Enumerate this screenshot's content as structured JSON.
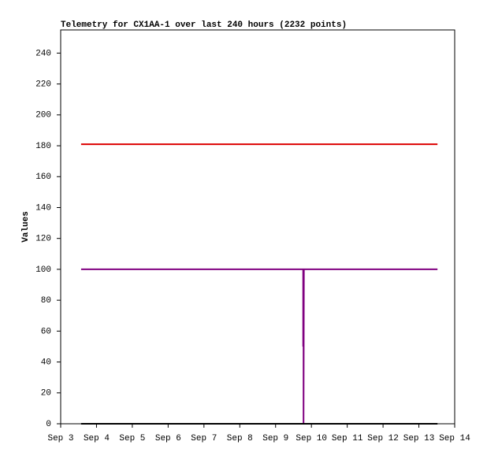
{
  "chart_data": {
    "type": "line",
    "title": "Telemetry for CX1AA-1 over last 240 hours (2232 points)",
    "y_label": "Values",
    "xlim": [
      3,
      14
    ],
    "xticks": [
      {
        "value": 3,
        "label": "Sep 3"
      },
      {
        "value": 4,
        "label": "Sep 4"
      },
      {
        "value": 5,
        "label": "Sep 5"
      },
      {
        "value": 6,
        "label": "Sep 6"
      },
      {
        "value": 7,
        "label": "Sep 7"
      },
      {
        "value": 8,
        "label": "Sep 8"
      },
      {
        "value": 9,
        "label": "Sep 9"
      },
      {
        "value": 10,
        "label": "Sep 10"
      },
      {
        "value": 11,
        "label": "Sep 11"
      },
      {
        "value": 12,
        "label": "Sep 12"
      },
      {
        "value": 13,
        "label": "Sep 13"
      },
      {
        "value": 14,
        "label": "Sep 14"
      }
    ],
    "ylim": [
      0,
      255
    ],
    "yticks": [
      0,
      20,
      40,
      60,
      80,
      100,
      120,
      140,
      160,
      180,
      200,
      220,
      240
    ],
    "series": [
      {
        "color": "#dd0000",
        "x": [
          3.57,
          13.52
        ],
        "values": [
          181,
          181
        ]
      },
      {
        "color": "#800080",
        "x": [
          3.57,
          9.77,
          9.77,
          9.775,
          9.775,
          9.78,
          9.78,
          9.79,
          13.52
        ],
        "values": [
          100,
          100,
          50,
          100,
          50,
          100,
          0,
          100,
          100
        ]
      },
      {
        "color": "#000000",
        "x": [
          3.57,
          13.52
        ],
        "values": [
          0,
          0
        ]
      }
    ]
  }
}
